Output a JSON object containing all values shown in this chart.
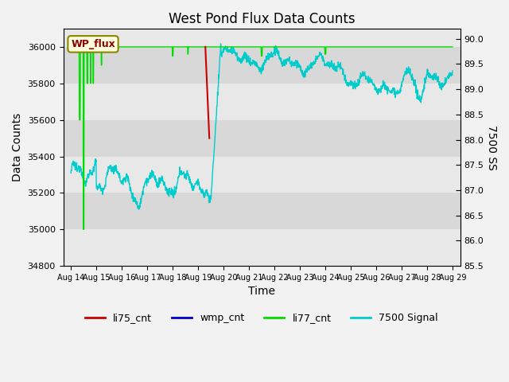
{
  "title": "West Pond Flux Data Counts",
  "xlabel": "Time",
  "ylabel_left": "Data Counts",
  "ylabel_right": "7500 SS",
  "ylim_left": [
    34800,
    36100
  ],
  "ylim_right": [
    85.5,
    90.2
  ],
  "annotation_text": "WP_flux",
  "x_tick_labels": [
    "Aug 14",
    "Aug 15",
    "Aug 16",
    "Aug 17",
    "Aug 18",
    "Aug 19",
    "Aug 20",
    "Aug 21",
    "Aug 22",
    "Aug 23",
    "Aug 24",
    "Aug 25",
    "Aug 26",
    "Aug 27",
    "Aug 28",
    "Aug 29"
  ],
  "li77_color": "#00dd00",
  "li75_color": "#cc0000",
  "wmp_color": "#0000cc",
  "signal7500_color": "#00cccc",
  "band_colors": [
    "#e8e8e8",
    "#d8d8d8"
  ],
  "band_edges_left": [
    34800,
    35000,
    35200,
    35400,
    35600,
    35800,
    36000,
    36100
  ],
  "left_yticks": [
    34800,
    35000,
    35200,
    35400,
    35600,
    35800,
    36000
  ],
  "right_yticks": [
    85.5,
    86.0,
    86.5,
    87.0,
    87.5,
    88.0,
    88.5,
    89.0,
    89.5,
    90.0
  ]
}
